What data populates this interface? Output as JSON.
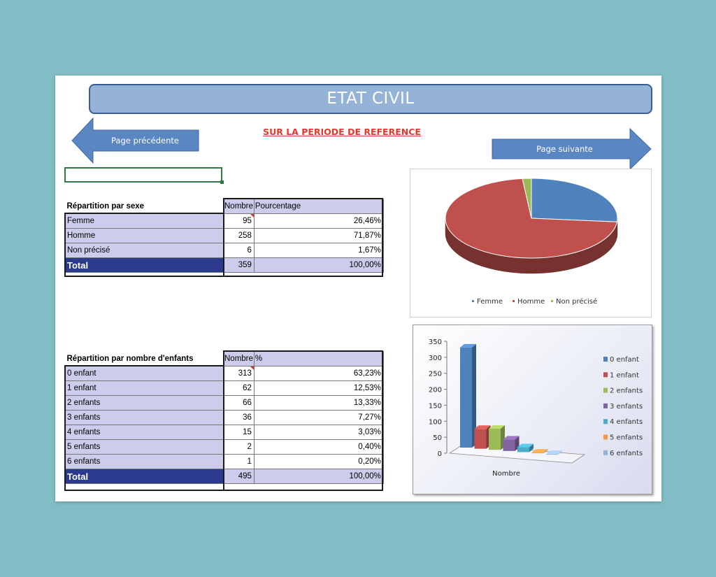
{
  "header": {
    "title": "ETAT CIVIL",
    "subtitle": "SUR LA PERIODE DE REFERENCE"
  },
  "nav": {
    "prev_label": "Page précédente",
    "next_label": "Page suivante"
  },
  "sexe": {
    "title": "Répartition par sexe",
    "col_nombre": "Nombre",
    "col_pct": "Pourcentage",
    "rows": [
      {
        "label": "Femme",
        "nombre": "95",
        "pct": "26,46%"
      },
      {
        "label": "Homme",
        "nombre": "258",
        "pct": "71,87%"
      },
      {
        "label": "Non précisé",
        "nombre": "6",
        "pct": "1,67%"
      }
    ],
    "total": {
      "label": "Total",
      "nombre": "359",
      "pct": "100,00%"
    }
  },
  "enfants": {
    "title": "Répartition par nombre d'enfants",
    "col_nombre": "Nombre",
    "col_pct": "%",
    "rows": [
      {
        "label": "0 enfant",
        "nombre": "313",
        "pct": "63,23%"
      },
      {
        "label": "1 enfant",
        "nombre": "62",
        "pct": "12,53%"
      },
      {
        "label": "2 enfants",
        "nombre": "66",
        "pct": "13,33%"
      },
      {
        "label": "3 enfants",
        "nombre": "36",
        "pct": "7,27%"
      },
      {
        "label": "4 enfants",
        "nombre": "15",
        "pct": "3,03%"
      },
      {
        "label": "5 enfants",
        "nombre": "2",
        "pct": "0,40%"
      },
      {
        "label": "6 enfants",
        "nombre": "1",
        "pct": "0,20%"
      }
    ],
    "total": {
      "label": "Total",
      "nombre": "495",
      "pct": "100,00%"
    }
  },
  "chart_data": [
    {
      "type": "pie",
      "categories": [
        "Femme",
        "Homme",
        "Non précisé"
      ],
      "values": [
        95,
        258,
        6
      ],
      "colors": [
        "#4f81bd",
        "#c0504d",
        "#9bbb59"
      ],
      "legend": "bottom"
    },
    {
      "type": "bar",
      "xlabel": "Nombre",
      "series": [
        {
          "name": "0 enfant",
          "values": [
            313
          ],
          "color": "#4f81bd"
        },
        {
          "name": "1 enfant",
          "values": [
            62
          ],
          "color": "#c0504d"
        },
        {
          "name": "2 enfants",
          "values": [
            66
          ],
          "color": "#9bbb59"
        },
        {
          "name": "3 enfants",
          "values": [
            36
          ],
          "color": "#8064a2"
        },
        {
          "name": "4 enfants",
          "values": [
            15
          ],
          "color": "#4bacc6"
        },
        {
          "name": "5 enfants",
          "values": [
            2
          ],
          "color": "#f79646"
        },
        {
          "name": "6 enfants",
          "values": [
            1
          ],
          "color": "#95b3d7"
        }
      ],
      "ylim": [
        0,
        350
      ],
      "yticks": [
        0,
        50,
        100,
        150,
        200,
        250,
        300,
        350
      ],
      "legend": "right"
    }
  ]
}
